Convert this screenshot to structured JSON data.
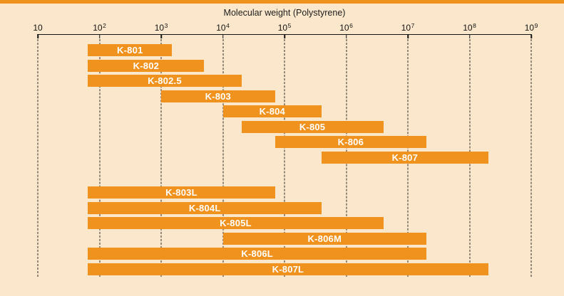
{
  "page": {
    "background_color": "#FBE7CB",
    "accent_color": "#F0921E",
    "text_color": "#141414"
  },
  "chart_data": {
    "type": "bar",
    "subtype": "horizontal-range-bars",
    "title": "Molecular weight (Polystyrene)",
    "x_scale": "log10",
    "xlim": [
      10,
      1000000000
    ],
    "x_ticks": [
      {
        "exp": 1,
        "label": "10"
      },
      {
        "exp": 2,
        "label": "10^2"
      },
      {
        "exp": 3,
        "label": "10^3"
      },
      {
        "exp": 4,
        "label": "10^4"
      },
      {
        "exp": 5,
        "label": "10^5"
      },
      {
        "exp": 6,
        "label": "10^6"
      },
      {
        "exp": 7,
        "label": "10^7"
      },
      {
        "exp": 8,
        "label": "10^8"
      },
      {
        "exp": 9,
        "label": "10^9"
      }
    ],
    "grid": "vertical-dashed",
    "legend": "none",
    "bar_color": "#F0921E",
    "bar_label_color": "#FFFFFF",
    "bar_groups": [
      {
        "bars": [
          {
            "label": "K-801",
            "mw_min": 65,
            "mw_max": 1500
          },
          {
            "label": "K-802",
            "mw_min": 65,
            "mw_max": 5000
          },
          {
            "label": "K-802.5",
            "mw_min": 65,
            "mw_max": 20000
          },
          {
            "label": "K-803",
            "mw_min": 1000,
            "mw_max": 70000
          },
          {
            "label": "K-804",
            "mw_min": 10000,
            "mw_max": 400000
          },
          {
            "label": "K-805",
            "mw_min": 20000,
            "mw_max": 4000000
          },
          {
            "label": "K-806",
            "mw_min": 70000,
            "mw_max": 20000000
          },
          {
            "label": "K-807",
            "mw_min": 400000,
            "mw_max": 200000000
          }
        ]
      },
      {
        "bars": [
          {
            "label": "K-803L",
            "mw_min": 65,
            "mw_max": 70000
          },
          {
            "label": "K-804L",
            "mw_min": 65,
            "mw_max": 400000
          },
          {
            "label": "K-805L",
            "mw_min": 65,
            "mw_max": 4000000
          },
          {
            "label": "K-806M",
            "mw_min": 10000,
            "mw_max": 20000000
          },
          {
            "label": "K-806L",
            "mw_min": 65,
            "mw_max": 20000000
          },
          {
            "label": "K-807L",
            "mw_min": 65,
            "mw_max": 200000000
          }
        ]
      }
    ]
  }
}
